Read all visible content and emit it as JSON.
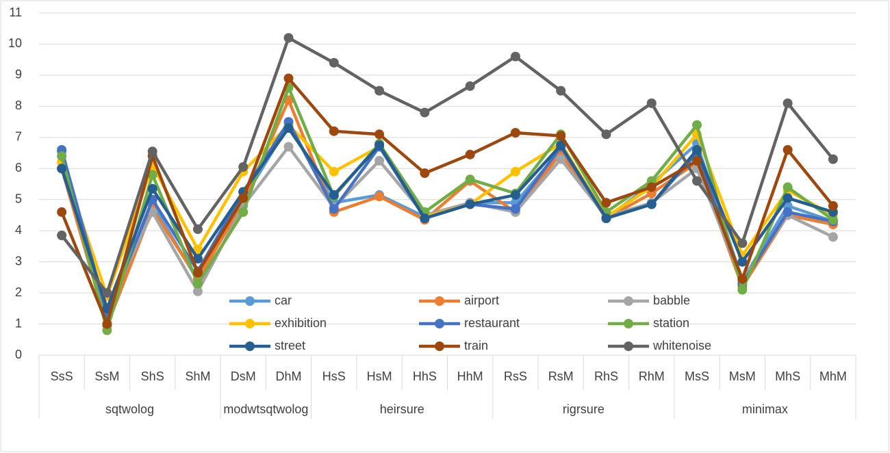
{
  "chart_data": {
    "type": "line",
    "groups": [
      {
        "name": "sqtwolog",
        "categories": [
          "SsS",
          "SsM",
          "ShS",
          "ShM"
        ]
      },
      {
        "name": "modwtsqtwolog",
        "categories": [
          "DsM",
          "DhM"
        ]
      },
      {
        "name": "heirsure",
        "categories": [
          "HsS",
          "HsM",
          "HhS",
          "HhM"
        ]
      },
      {
        "name": "rigrsure",
        "categories": [
          "RsS",
          "RsM",
          "RhS",
          "RhM"
        ]
      },
      {
        "name": "minimax",
        "categories": [
          "MsS",
          "MsM",
          "MhS",
          "MhM"
        ]
      }
    ],
    "series": [
      {
        "name": "car",
        "color": "#5b9bd5",
        "values": [
          6.55,
          1.2,
          4.85,
          2.4,
          5.0,
          7.4,
          4.9,
          5.15,
          4.45,
          4.9,
          4.9,
          6.6,
          4.4,
          5.5,
          6.8,
          2.4,
          4.8,
          4.3
        ]
      },
      {
        "name": "airport",
        "color": "#ed7d31",
        "values": [
          6.0,
          0.95,
          4.7,
          2.45,
          4.9,
          8.2,
          4.6,
          5.1,
          4.35,
          5.6,
          4.6,
          6.5,
          4.4,
          5.2,
          6.2,
          2.2,
          4.5,
          4.2
        ]
      },
      {
        "name": "babble",
        "color": "#a5a5a5",
        "values": [
          6.0,
          1.5,
          4.6,
          2.05,
          4.8,
          6.7,
          4.75,
          6.25,
          4.5,
          4.9,
          4.6,
          6.3,
          4.45,
          4.9,
          6.0,
          2.4,
          4.5,
          3.8
        ]
      },
      {
        "name": "exhibition",
        "color": "#ffc000",
        "values": [
          6.2,
          1.9,
          6.1,
          3.4,
          5.9,
          7.4,
          5.9,
          6.7,
          4.45,
          4.85,
          5.9,
          6.8,
          4.45,
          5.4,
          7.1,
          3.2,
          5.3,
          4.5
        ]
      },
      {
        "name": "restaurant",
        "color": "#4472c4",
        "values": [
          6.6,
          1.3,
          5.0,
          2.7,
          5.25,
          7.5,
          4.7,
          6.7,
          4.4,
          4.85,
          4.7,
          6.7,
          4.4,
          4.85,
          6.5,
          2.3,
          4.6,
          4.3
        ]
      },
      {
        "name": "station",
        "color": "#70ad47",
        "values": [
          6.4,
          0.8,
          5.8,
          2.3,
          4.6,
          8.6,
          5.1,
          6.8,
          4.6,
          5.65,
          5.2,
          7.1,
          4.6,
          5.6,
          7.4,
          2.1,
          5.4,
          4.35
        ]
      },
      {
        "name": "street",
        "color": "#255e91",
        "values": [
          6.0,
          1.5,
          5.35,
          3.1,
          5.25,
          7.3,
          5.15,
          6.75,
          4.4,
          4.85,
          5.15,
          6.75,
          4.4,
          4.85,
          6.6,
          3.0,
          5.05,
          4.6
        ]
      },
      {
        "name": "train",
        "color": "#9e480e",
        "values": [
          4.6,
          1.0,
          6.4,
          2.65,
          5.05,
          8.9,
          7.2,
          7.1,
          5.85,
          6.45,
          7.15,
          7.05,
          4.9,
          5.4,
          6.25,
          2.45,
          6.6,
          4.8
        ]
      },
      {
        "name": "whitenoise",
        "color": "#636363",
        "values": [
          3.85,
          2.0,
          6.55,
          4.05,
          6.05,
          10.2,
          9.4,
          8.5,
          7.8,
          8.65,
          9.6,
          8.5,
          7.1,
          8.1,
          5.6,
          3.6,
          8.1,
          6.3
        ]
      }
    ],
    "ylim": [
      0,
      11
    ],
    "yticks": [
      0,
      1,
      2,
      3,
      4,
      5,
      6,
      7,
      8,
      9,
      10,
      11
    ],
    "grid": true
  }
}
